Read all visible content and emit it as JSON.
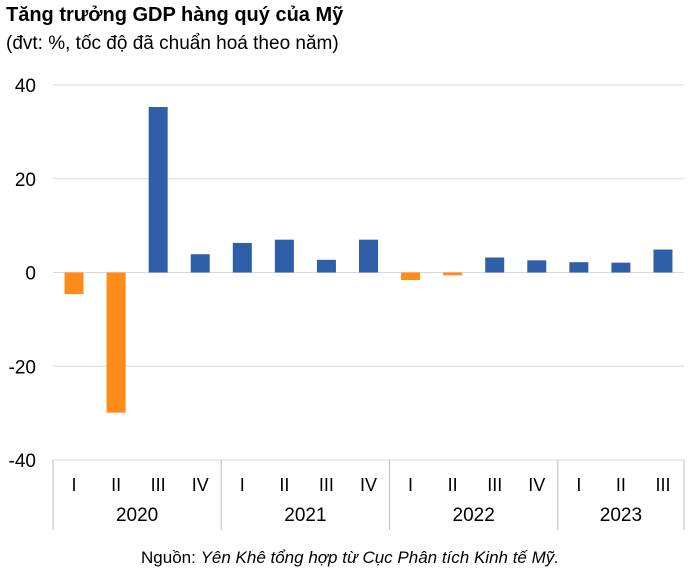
{
  "title": "Tăng trưởng GDP hàng quý của Mỹ",
  "subtitle": "(đvt: %, tốc độ đã chuẩn hoá theo năm)",
  "source": {
    "prefix": "Nguồn: ",
    "text": "Yên Khê tổng hợp từ Cục Phân tích Kinh tế Mỹ."
  },
  "colors": {
    "positive": "#2e5fa8",
    "negative": "#ff8c1a",
    "grid": "#d9d9d9",
    "axis": "#bfbfbf"
  },
  "chart_data": {
    "type": "bar",
    "title": "Tăng trưởng GDP hàng quý của Mỹ",
    "subtitle": "(đvt: %, tốc độ đã chuẩn hoá theo năm)",
    "quarters": [
      "I",
      "II",
      "III",
      "IV",
      "I",
      "II",
      "III",
      "IV",
      "I",
      "II",
      "III",
      "IV",
      "I",
      "II",
      "III"
    ],
    "years": [
      {
        "label": "2020",
        "count": 4
      },
      {
        "label": "2021",
        "count": 4
      },
      {
        "label": "2022",
        "count": 4
      },
      {
        "label": "2023",
        "count": 3
      }
    ],
    "values": [
      -4.6,
      -29.9,
      35.3,
      3.9,
      6.3,
      7.0,
      2.7,
      7.0,
      -1.6,
      -0.6,
      3.2,
      2.6,
      2.2,
      2.1,
      4.9
    ],
    "ylim": [
      -40,
      40
    ],
    "yticks": [
      40,
      20,
      0,
      -20,
      -40
    ],
    "grid": true,
    "legend": false
  }
}
